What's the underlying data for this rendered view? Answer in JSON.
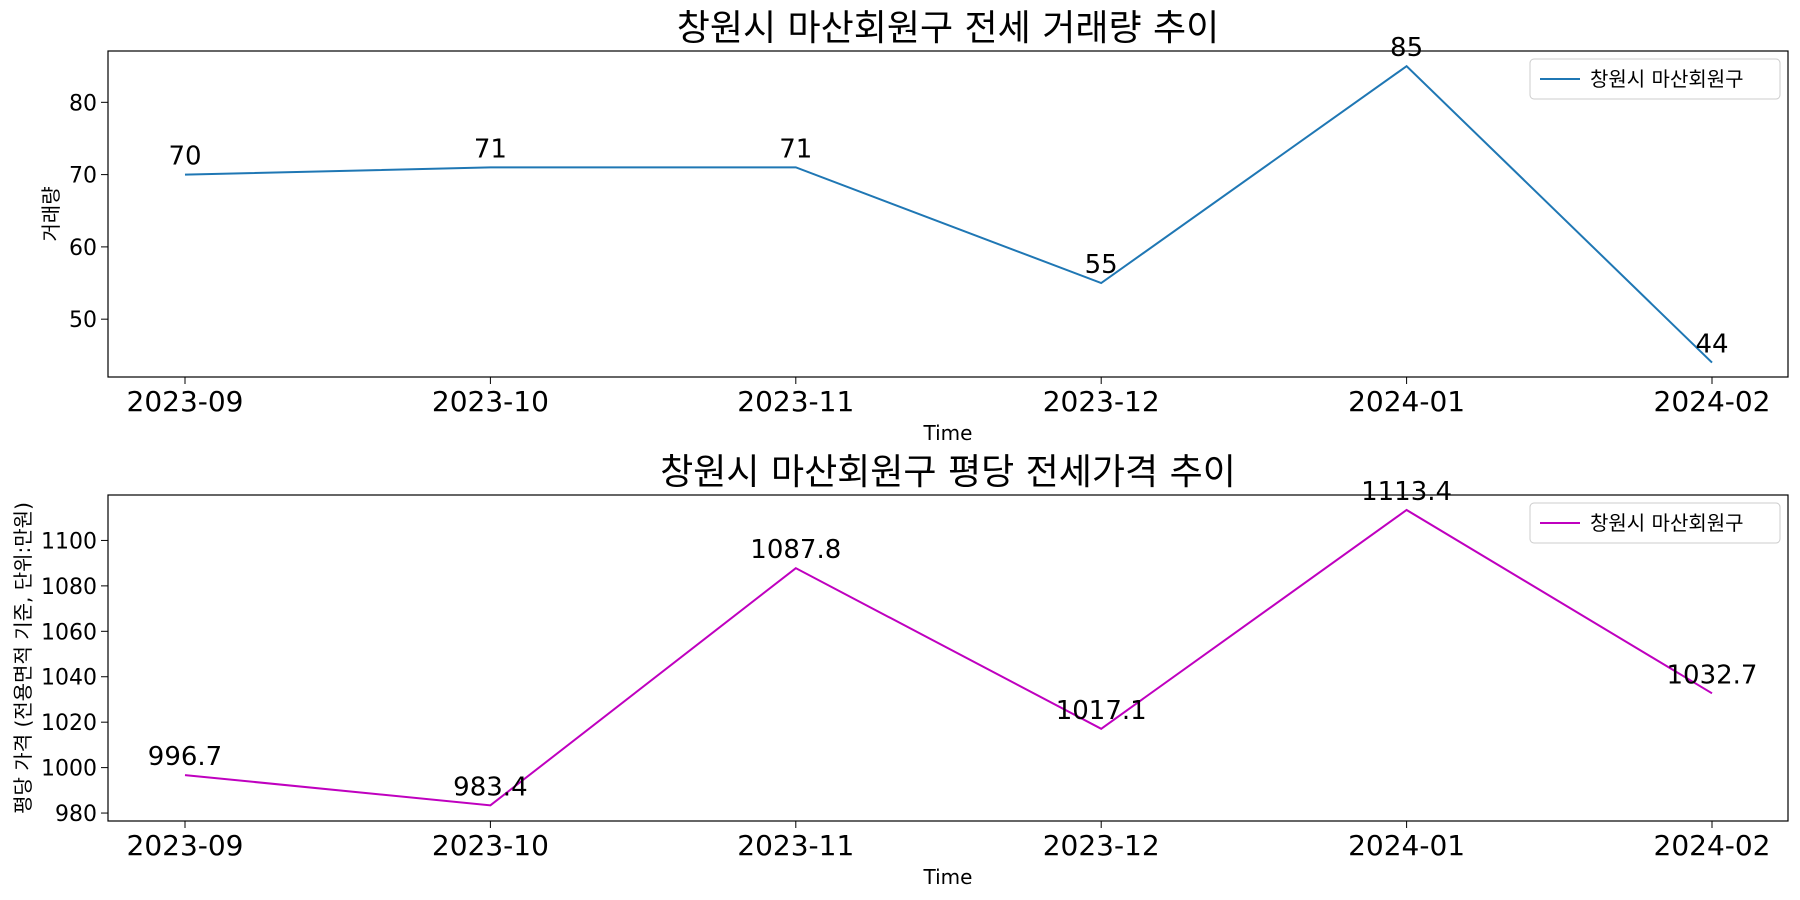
{
  "chart_data": [
    {
      "type": "line",
      "title": "창원시 마산회원구 전세 거래량 추이",
      "xlabel": "Time",
      "ylabel": "거래량",
      "categories": [
        "2023-09",
        "2023-10",
        "2023-11",
        "2023-12",
        "2024-01",
        "2024-02"
      ],
      "series": [
        {
          "name": "창원시 마산회원구",
          "color": "#1f77b4",
          "values": [
            70,
            71,
            71,
            55,
            85,
            44
          ]
        }
      ],
      "data_labels": [
        "70",
        "71",
        "71",
        "55",
        "85",
        "44"
      ],
      "yticks": [
        50,
        60,
        70,
        80
      ],
      "ylim": [
        42,
        87.1
      ],
      "legend": "top-right",
      "grid": false
    },
    {
      "type": "line",
      "title": "창원시 마산회원구 평당 전세가격 추이",
      "xlabel": "Time",
      "ylabel": "평당 가격 (전용면적 기준, 단위:만원)",
      "categories": [
        "2023-09",
        "2023-10",
        "2023-11",
        "2023-12",
        "2024-01",
        "2024-02"
      ],
      "series": [
        {
          "name": "창원시 마산회원구",
          "color": "#bf00bf",
          "values": [
            996.7,
            983.4,
            1087.8,
            1017.1,
            1113.4,
            1032.7
          ]
        }
      ],
      "data_labels": [
        "996.7",
        "983.4",
        "1087.8",
        "1017.1",
        "1113.4",
        "1032.7"
      ],
      "yticks": [
        980,
        1000,
        1020,
        1040,
        1060,
        1080,
        1100
      ],
      "ylim": [
        976.5,
        1120
      ],
      "legend": "top-right",
      "grid": false
    }
  ]
}
